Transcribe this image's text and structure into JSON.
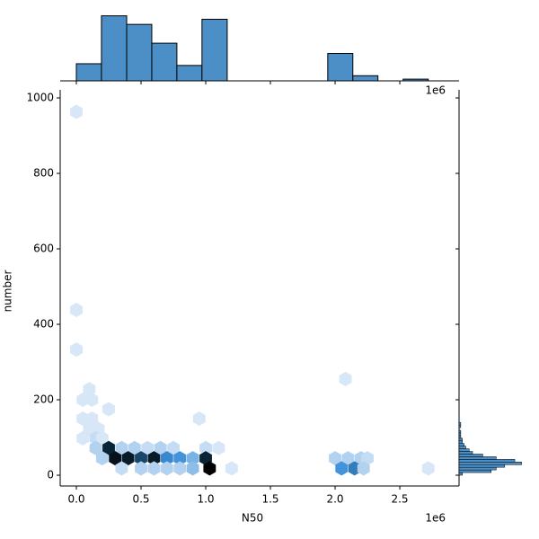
{
  "chart_data": {
    "type": "hexbin",
    "x_label": "N50",
    "y_label": "number",
    "x_offset_text": "1e6",
    "xlim": [
      -0.125,
      2.958
    ],
    "ylim": [
      -28.6,
      1021.4
    ],
    "xticks": [
      {
        "value": 0,
        "label": "0.0"
      },
      0.5,
      {
        "value": 1,
        "label": "1.0"
      },
      1.5,
      {
        "value": 2,
        "label": "2.0"
      },
      2.5
    ],
    "yticks": [
      0,
      200,
      400,
      600,
      800,
      1000
    ],
    "colormap": [
      "#eaf2fb",
      "#3c8fd8",
      "#0b2a40",
      "#000000"
    ],
    "hexes": {
      "x": [
        0,
        0,
        0,
        0.05,
        0.1,
        0.12,
        0.25,
        0.05,
        0.12,
        0.1,
        0.17,
        0.05,
        0.15,
        0.2,
        0.15,
        0.25,
        0.35,
        0.45,
        0.55,
        0.65,
        0.75,
        0.95,
        1.0,
        1.1,
        0.2,
        0.3,
        0.4,
        0.5,
        0.6,
        0.7,
        0.8,
        0.9,
        1.0,
        2.0,
        2.1,
        2.2,
        2.25,
        0.35,
        0.5,
        0.6,
        0.7,
        0.8,
        0.9,
        1.03,
        1.2,
        2.05,
        2.15,
        2.22,
        2.72,
        2.08
      ],
      "y": [
        963,
        438,
        333,
        200,
        228,
        200,
        175,
        150,
        150,
        123,
        123,
        98,
        98,
        98,
        72,
        72,
        72,
        72,
        72,
        72,
        72,
        150,
        72,
        72,
        45,
        45,
        45,
        45,
        45,
        45,
        45,
        45,
        45,
        45,
        45,
        45,
        45,
        18,
        18,
        18,
        18,
        18,
        18,
        18,
        18,
        18,
        18,
        18,
        18,
        255
      ],
      "counts": [
        1,
        1,
        1,
        1,
        1,
        1,
        1,
        1,
        1,
        1,
        1,
        1,
        2,
        1,
        3,
        20,
        3,
        3,
        2,
        3,
        2,
        1,
        2,
        1,
        3,
        24,
        22,
        16,
        22,
        10,
        9,
        6,
        20,
        3,
        3,
        3,
        2,
        2,
        3,
        3,
        3,
        3,
        5,
        28,
        1,
        9,
        11,
        3,
        1,
        1
      ]
    },
    "top_hist": {
      "color": "#4c8fc7",
      "bins": [
        0,
        0.194,
        0.389,
        0.583,
        0.777,
        0.971,
        1.166,
        1.36,
        1.554,
        1.749,
        1.943,
        2.137,
        2.331,
        2.526,
        2.72
      ],
      "counts": [
        10,
        38,
        33,
        22,
        9,
        36,
        0,
        0,
        0,
        0,
        16,
        3,
        0,
        1
      ],
      "ylim": [
        0,
        42
      ]
    },
    "right_hist": {
      "color": "#4c8fc7",
      "bins": [
        0,
        7,
        14,
        21,
        28,
        35,
        42,
        49,
        56,
        63,
        70,
        77,
        84,
        91,
        98,
        105,
        112,
        119,
        126,
        133,
        140
      ],
      "counts": [
        2,
        19,
        22,
        27,
        37,
        33,
        22,
        14,
        8,
        6,
        4,
        3,
        2,
        2,
        1,
        1,
        1,
        0,
        1,
        1
      ],
      "xlim": [
        0,
        42
      ]
    }
  }
}
